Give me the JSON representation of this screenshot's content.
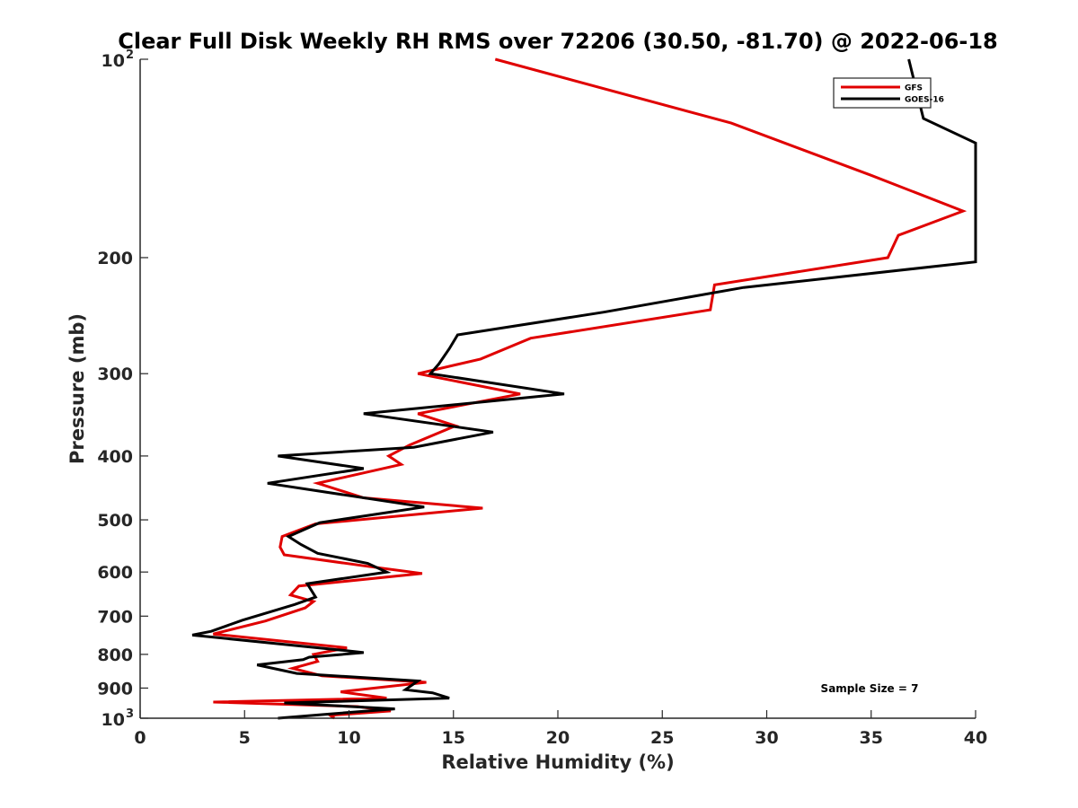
{
  "chart_data": {
    "type": "line",
    "title": "Clear Full Disk Weekly RH RMS over 72206 (30.50, -81.70) @ 2022-06-18",
    "xlabel": "Relative Humidity (%)",
    "ylabel": "Pressure (mb)",
    "xlim": [
      0,
      40
    ],
    "ylim": [
      100,
      1000
    ],
    "yscale": "log",
    "y_reversed": true,
    "grid": false,
    "x_ticks": [
      "0",
      "5",
      "10",
      "15",
      "20",
      "25",
      "30",
      "35",
      "40"
    ],
    "y_ticks": [
      {
        "value": 100,
        "base": "10",
        "exp": "2"
      },
      {
        "value": 200,
        "label": "200"
      },
      {
        "value": 300,
        "label": "300"
      },
      {
        "value": 400,
        "label": "400"
      },
      {
        "value": 500,
        "label": "500"
      },
      {
        "value": 600,
        "label": "600"
      },
      {
        "value": 700,
        "label": "700"
      },
      {
        "value": 800,
        "label": "800"
      },
      {
        "value": 900,
        "label": "900"
      },
      {
        "value": 1000,
        "base": "10",
        "exp": "3"
      }
    ],
    "legend_position": "top-right",
    "annotation": "Sample Size = 7",
    "series": [
      {
        "name": "GFS",
        "color": "#e00000",
        "points": [
          [
            17.0,
            100
          ],
          [
            28.3,
            125
          ],
          [
            35.0,
            150
          ],
          [
            39.4,
            170
          ],
          [
            36.3,
            185
          ],
          [
            35.8,
            200
          ],
          [
            27.5,
            220
          ],
          [
            27.3,
            240
          ],
          [
            18.7,
            265
          ],
          [
            16.3,
            285
          ],
          [
            13.3,
            300
          ],
          [
            18.2,
            322
          ],
          [
            13.3,
            345
          ],
          [
            15.1,
            360
          ],
          [
            12.9,
            385
          ],
          [
            11.9,
            400
          ],
          [
            12.5,
            412
          ],
          [
            8.5,
            440
          ],
          [
            10.7,
            463
          ],
          [
            16.4,
            480
          ],
          [
            8.4,
            507
          ],
          [
            6.8,
            530
          ],
          [
            6.7,
            550
          ],
          [
            6.9,
            565
          ],
          [
            10.7,
            587
          ],
          [
            13.5,
            603
          ],
          [
            7.6,
            630
          ],
          [
            7.2,
            650
          ],
          [
            8.3,
            665
          ],
          [
            7.9,
            680
          ],
          [
            6.0,
            712
          ],
          [
            3.5,
            745
          ],
          [
            9.9,
            782
          ],
          [
            8.3,
            800
          ],
          [
            8.5,
            820
          ],
          [
            7.3,
            840
          ],
          [
            8.7,
            862
          ],
          [
            13.7,
            882
          ],
          [
            9.6,
            912
          ],
          [
            11.8,
            932
          ],
          [
            3.5,
            945
          ],
          [
            10.4,
            960
          ],
          [
            12.0,
            975
          ],
          [
            9.1,
            990
          ],
          [
            9.3,
            1000
          ]
        ]
      },
      {
        "name": "GOES-16",
        "color": "#000000",
        "points": [
          [
            36.8,
            100
          ],
          [
            37.5,
            123
          ],
          [
            40.0,
            134
          ],
          [
            40.0,
            203
          ],
          [
            28.9,
            222
          ],
          [
            22.2,
            242
          ],
          [
            15.2,
            262
          ],
          [
            14.8,
            275
          ],
          [
            14.3,
            290
          ],
          [
            13.9,
            300
          ],
          [
            20.3,
            322
          ],
          [
            10.7,
            345
          ],
          [
            16.9,
            368
          ],
          [
            13.1,
            388
          ],
          [
            6.6,
            400
          ],
          [
            10.7,
            418
          ],
          [
            6.1,
            440
          ],
          [
            13.6,
            478
          ],
          [
            8.6,
            505
          ],
          [
            7.1,
            530
          ],
          [
            7.7,
            545
          ],
          [
            8.5,
            562
          ],
          [
            10.9,
            582
          ],
          [
            11.8,
            600
          ],
          [
            8.0,
            625
          ],
          [
            8.4,
            655
          ],
          [
            7.4,
            672
          ],
          [
            4.9,
            710
          ],
          [
            3.4,
            738
          ],
          [
            2.5,
            748
          ],
          [
            9.6,
            788
          ],
          [
            10.7,
            795
          ],
          [
            8.1,
            808
          ],
          [
            7.8,
            815
          ],
          [
            5.6,
            830
          ],
          [
            7.5,
            855
          ],
          [
            13.3,
            878
          ],
          [
            12.7,
            905
          ],
          [
            14.0,
            915
          ],
          [
            14.8,
            932
          ],
          [
            6.9,
            948
          ],
          [
            12.2,
            968
          ],
          [
            9.1,
            985
          ],
          [
            6.6,
            1000
          ]
        ]
      }
    ]
  }
}
